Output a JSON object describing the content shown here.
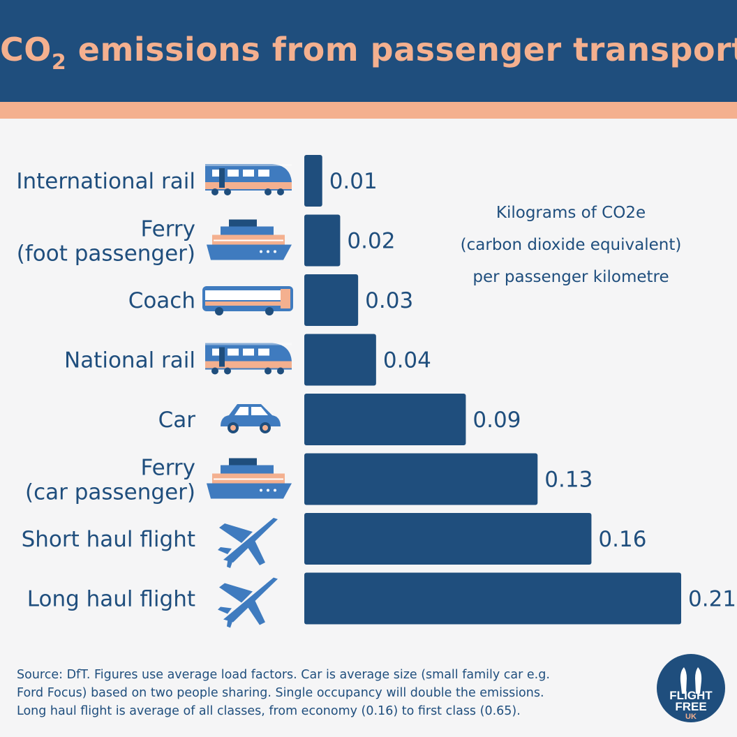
{
  "title": {
    "prefix": "CO",
    "sub": "2",
    "rest": " emissions from passenger transport"
  },
  "unit_lines": [
    "Kilograms of CO2e",
    "(carbon dioxide equivalent)",
    "per passenger kilometre"
  ],
  "footer_lines": [
    "Source: DfT. Figures use average load factors. Car is average size (small family car e.g.",
    "Ford Focus) based on two people sharing. Single occupancy will double the emissions.",
    "Long haul flight is average of all classes, from economy (0.16) to first class (0.65)."
  ],
  "logo": {
    "line1": "FLIGHT",
    "line2": "FREE",
    "line3": "UK"
  },
  "colors": {
    "navy": "#1f4e7d",
    "peach": "#f4b08f",
    "icon_blue": "#3f7bbf",
    "background": "#f5f5f6"
  },
  "chart_data": {
    "type": "bar",
    "orientation": "horizontal",
    "categories": [
      [
        "International rail"
      ],
      [
        "Ferry",
        "(foot passenger)"
      ],
      [
        "Coach"
      ],
      [
        "National rail"
      ],
      [
        "Car"
      ],
      [
        "Ferry",
        "(car passenger)"
      ],
      [
        "Short haul flight"
      ],
      [
        "Long haul flight"
      ]
    ],
    "values": [
      0.01,
      0.02,
      0.03,
      0.04,
      0.09,
      0.13,
      0.16,
      0.21
    ],
    "value_labels": [
      "0.01",
      "0.02",
      "0.03",
      "0.04",
      "0.09",
      "0.13",
      "0.16",
      "0.21"
    ],
    "icons": [
      "train-icon",
      "ferry-icon",
      "bus-icon",
      "train-icon",
      "car-icon",
      "ferry-icon",
      "airplane-icon",
      "airplane-icon"
    ],
    "xlim": [
      0,
      0.21
    ],
    "grid": false,
    "legend": "none"
  }
}
